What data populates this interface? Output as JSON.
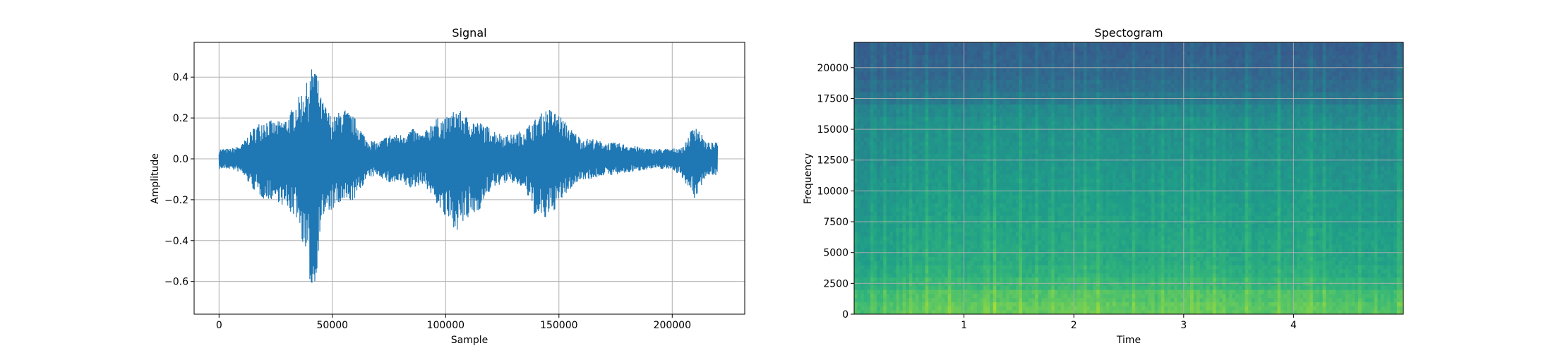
{
  "chart_data": [
    {
      "type": "line",
      "title": "Signal",
      "xlabel": "Sample",
      "ylabel": "Amplitude",
      "xlim": [
        -11000,
        232000
      ],
      "ylim": [
        -0.76,
        0.57
      ],
      "xticks": [
        0,
        50000,
        100000,
        150000,
        200000
      ],
      "yticks": [
        -0.6,
        -0.4,
        -0.2,
        0.0,
        0.2,
        0.4
      ],
      "grid": true,
      "color": "#1f77b4",
      "series": [
        {
          "x": [
            0,
            5000,
            10000,
            15000,
            20000,
            25000,
            30000,
            35000,
            40000,
            42000,
            45000,
            50000,
            55000,
            60000,
            65000,
            70000,
            75000,
            80000,
            85000,
            90000,
            95000,
            100000,
            105000,
            110000,
            115000,
            120000,
            125000,
            130000,
            135000,
            140000,
            145000,
            150000,
            155000,
            160000,
            165000,
            170000,
            175000,
            180000,
            185000,
            190000,
            195000,
            200000,
            205000,
            210000,
            215000,
            220000
          ],
          "y_max": [
            0.05,
            0.05,
            0.07,
            0.15,
            0.2,
            0.18,
            0.2,
            0.3,
            0.4,
            0.5,
            0.3,
            0.2,
            0.25,
            0.2,
            0.1,
            0.08,
            0.12,
            0.12,
            0.15,
            0.12,
            0.2,
            0.2,
            0.25,
            0.2,
            0.18,
            0.15,
            0.12,
            0.12,
            0.15,
            0.2,
            0.25,
            0.22,
            0.15,
            0.1,
            0.1,
            0.08,
            0.08,
            0.07,
            0.06,
            0.05,
            0.05,
            0.05,
            0.06,
            0.18,
            0.08,
            0.08
          ],
          "y_min": [
            -0.05,
            -0.05,
            -0.07,
            -0.15,
            -0.2,
            -0.2,
            -0.25,
            -0.3,
            -0.6,
            -0.7,
            -0.3,
            -0.25,
            -0.22,
            -0.2,
            -0.1,
            -0.08,
            -0.12,
            -0.12,
            -0.15,
            -0.12,
            -0.2,
            -0.3,
            -0.35,
            -0.3,
            -0.25,
            -0.15,
            -0.12,
            -0.12,
            -0.15,
            -0.3,
            -0.3,
            -0.22,
            -0.15,
            -0.1,
            -0.1,
            -0.08,
            -0.08,
            -0.07,
            -0.06,
            -0.05,
            -0.05,
            -0.05,
            -0.1,
            -0.2,
            -0.08,
            -0.08
          ]
        }
      ]
    },
    {
      "type": "heatmap",
      "title": "Spectogram",
      "xlabel": "Time",
      "ylabel": "Frequency",
      "xlim": [
        0,
        5.0
      ],
      "ylim": [
        0,
        22050
      ],
      "xticks": [
        1,
        2,
        3,
        4
      ],
      "yticks": [
        0,
        2500,
        5000,
        7500,
        10000,
        12500,
        15000,
        17500,
        20000
      ],
      "grid": true,
      "colormap": "viridis",
      "energy_over_time": [
        0.55,
        0.6,
        0.65,
        0.7,
        0.75,
        0.8,
        0.82,
        0.8,
        0.75,
        0.78,
        0.8,
        0.78,
        0.75,
        0.72,
        0.78,
        0.8,
        0.82,
        0.8,
        0.78,
        0.75,
        0.72,
        0.75,
        0.78,
        0.8,
        0.82,
        0.8,
        0.78,
        0.75,
        0.72,
        0.7,
        0.72,
        0.75,
        0.78,
        0.75,
        0.72,
        0.7,
        0.68,
        0.66,
        0.65,
        0.64
      ],
      "energy_over_frequency": [
        1.0,
        0.95,
        0.85,
        0.78,
        0.74,
        0.72,
        0.7,
        0.68,
        0.66,
        0.64,
        0.62,
        0.6,
        0.58,
        0.57,
        0.56,
        0.55,
        0.5,
        0.38,
        0.3,
        0.25,
        0.22,
        0.2
      ]
    }
  ]
}
